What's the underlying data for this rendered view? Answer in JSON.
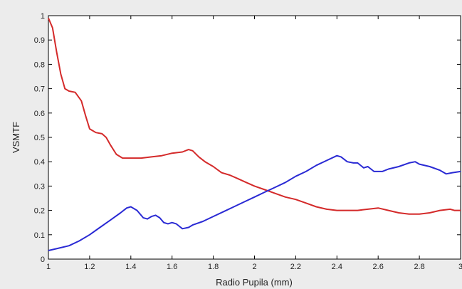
{
  "chart_data": {
    "type": "line",
    "xlabel": "Radio Pupila (mm)",
    "ylabel": "VSMTF",
    "xlim": [
      1,
      3
    ],
    "ylim": [
      0,
      1
    ],
    "xticks": [
      "1",
      "1.2",
      "1.4",
      "1.6",
      "1.8",
      "2",
      "2.2",
      "2.4",
      "2.6",
      "2.8",
      "3"
    ],
    "yticks": [
      "0",
      "0.1",
      "0.2",
      "0.3",
      "0.4",
      "0.5",
      "0.6",
      "0.7",
      "0.8",
      "0.9",
      "1"
    ],
    "grid": false,
    "series": [
      {
        "color": "#d42a2a",
        "points": [
          [
            1.0,
            0.99
          ],
          [
            1.02,
            0.95
          ],
          [
            1.04,
            0.85
          ],
          [
            1.06,
            0.76
          ],
          [
            1.08,
            0.7
          ],
          [
            1.1,
            0.69
          ],
          [
            1.13,
            0.685
          ],
          [
            1.16,
            0.65
          ],
          [
            1.18,
            0.59
          ],
          [
            1.2,
            0.535
          ],
          [
            1.23,
            0.52
          ],
          [
            1.26,
            0.515
          ],
          [
            1.28,
            0.5
          ],
          [
            1.3,
            0.47
          ],
          [
            1.33,
            0.43
          ],
          [
            1.36,
            0.415
          ],
          [
            1.4,
            0.415
          ],
          [
            1.45,
            0.415
          ],
          [
            1.5,
            0.42
          ],
          [
            1.55,
            0.425
          ],
          [
            1.6,
            0.435
          ],
          [
            1.65,
            0.44
          ],
          [
            1.68,
            0.45
          ],
          [
            1.7,
            0.445
          ],
          [
            1.73,
            0.42
          ],
          [
            1.76,
            0.4
          ],
          [
            1.8,
            0.38
          ],
          [
            1.84,
            0.355
          ],
          [
            1.88,
            0.345
          ],
          [
            1.92,
            0.33
          ],
          [
            1.96,
            0.315
          ],
          [
            2.0,
            0.3
          ],
          [
            2.05,
            0.285
          ],
          [
            2.1,
            0.27
          ],
          [
            2.15,
            0.255
          ],
          [
            2.2,
            0.245
          ],
          [
            2.25,
            0.23
          ],
          [
            2.3,
            0.215
          ],
          [
            2.35,
            0.205
          ],
          [
            2.4,
            0.2
          ],
          [
            2.5,
            0.2
          ],
          [
            2.6,
            0.21
          ],
          [
            2.65,
            0.2
          ],
          [
            2.7,
            0.19
          ],
          [
            2.75,
            0.185
          ],
          [
            2.8,
            0.185
          ],
          [
            2.85,
            0.19
          ],
          [
            2.9,
            0.2
          ],
          [
            2.95,
            0.205
          ],
          [
            2.97,
            0.2
          ],
          [
            3.0,
            0.2
          ]
        ]
      },
      {
        "color": "#2a2ad4",
        "points": [
          [
            1.0,
            0.035
          ],
          [
            1.05,
            0.045
          ],
          [
            1.1,
            0.055
          ],
          [
            1.15,
            0.075
          ],
          [
            1.2,
            0.1
          ],
          [
            1.25,
            0.13
          ],
          [
            1.3,
            0.16
          ],
          [
            1.35,
            0.19
          ],
          [
            1.38,
            0.21
          ],
          [
            1.4,
            0.215
          ],
          [
            1.43,
            0.2
          ],
          [
            1.46,
            0.17
          ],
          [
            1.48,
            0.165
          ],
          [
            1.5,
            0.175
          ],
          [
            1.52,
            0.18
          ],
          [
            1.54,
            0.17
          ],
          [
            1.56,
            0.15
          ],
          [
            1.58,
            0.145
          ],
          [
            1.6,
            0.15
          ],
          [
            1.62,
            0.145
          ],
          [
            1.65,
            0.125
          ],
          [
            1.68,
            0.13
          ],
          [
            1.7,
            0.14
          ],
          [
            1.75,
            0.155
          ],
          [
            1.8,
            0.175
          ],
          [
            1.85,
            0.195
          ],
          [
            1.9,
            0.215
          ],
          [
            1.95,
            0.235
          ],
          [
            2.0,
            0.255
          ],
          [
            2.05,
            0.275
          ],
          [
            2.1,
            0.295
          ],
          [
            2.15,
            0.315
          ],
          [
            2.2,
            0.34
          ],
          [
            2.25,
            0.36
          ],
          [
            2.3,
            0.385
          ],
          [
            2.35,
            0.405
          ],
          [
            2.4,
            0.425
          ],
          [
            2.42,
            0.42
          ],
          [
            2.45,
            0.4
          ],
          [
            2.48,
            0.395
          ],
          [
            2.5,
            0.395
          ],
          [
            2.53,
            0.375
          ],
          [
            2.55,
            0.38
          ],
          [
            2.58,
            0.36
          ],
          [
            2.62,
            0.36
          ],
          [
            2.65,
            0.37
          ],
          [
            2.7,
            0.38
          ],
          [
            2.75,
            0.395
          ],
          [
            2.78,
            0.4
          ],
          [
            2.8,
            0.39
          ],
          [
            2.85,
            0.38
          ],
          [
            2.9,
            0.365
          ],
          [
            2.93,
            0.35
          ],
          [
            2.96,
            0.355
          ],
          [
            3.0,
            0.36
          ]
        ]
      }
    ]
  }
}
